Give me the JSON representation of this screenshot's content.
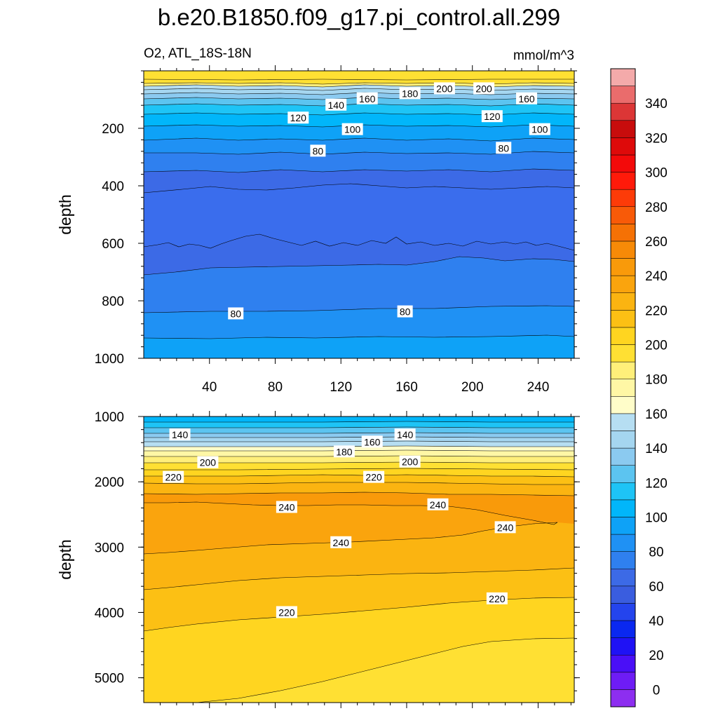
{
  "title": "b.e20.B1850.f09_g17.pi_control.all.299",
  "left_subtitle": "O2, ATL_18S-18N",
  "right_subtitle": "mmol/m^3",
  "colorbar": {
    "colors": [
      "#8d2ef0",
      "#6e1cf5",
      "#4a0ff7",
      "#1f12f5",
      "#0a28f0",
      "#2444ed",
      "#3a5ddf",
      "#3c6ae6",
      "#2f80ef",
      "#1f91f4",
      "#0ea2f7",
      "#01b6fa",
      "#1ec4f6",
      "#5cc4f0",
      "#8bcaf0",
      "#a5d6f0",
      "#b6def2",
      "#fffdc9",
      "#fff7a5",
      "#ffef7a",
      "#ffe033",
      "#ffd520",
      "#fcc014",
      "#fbb411",
      "#faa40d",
      "#f99a0a",
      "#f78a07",
      "#f57105",
      "#f85a08",
      "#fd3b08",
      "#ff1a0a",
      "#f30a0a",
      "#de0a0a",
      "#c80c0c",
      "#dc3636",
      "#ea6c6c",
      "#f4aaaa"
    ],
    "labels": [
      "0",
      "20",
      "40",
      "60",
      "80",
      "100",
      "120",
      "140",
      "160",
      "180",
      "200",
      "220",
      "240",
      "260",
      "280",
      "300",
      "320",
      "340"
    ]
  },
  "chart_data": [
    {
      "type": "contour",
      "panel": "upper",
      "xticks": [
        "40",
        "80",
        "120",
        "160",
        "200",
        "240"
      ],
      "yticks": [
        "200",
        "400",
        "600",
        "800",
        "1000"
      ],
      "ylabel": "depth",
      "xlim": [
        0,
        262
      ],
      "ylim": [
        1000,
        0
      ],
      "contour_labels": [
        {
          "text": "200",
          "x": 183,
          "y": 62
        },
        {
          "text": "200",
          "x": 207,
          "y": 62
        },
        {
          "text": "180",
          "x": 162,
          "y": 79
        },
        {
          "text": "160",
          "x": 136,
          "y": 97
        },
        {
          "text": "160",
          "x": 233,
          "y": 97
        },
        {
          "text": "140",
          "x": 117,
          "y": 119
        },
        {
          "text": "120",
          "x": 94,
          "y": 164
        },
        {
          "text": "120",
          "x": 212,
          "y": 159
        },
        {
          "text": "100",
          "x": 127,
          "y": 204
        },
        {
          "text": "100",
          "x": 241,
          "y": 204
        },
        {
          "text": "80",
          "x": 106,
          "y": 279
        },
        {
          "text": "80",
          "x": 219,
          "y": 269
        },
        {
          "text": "80",
          "x": 56,
          "y": 845
        },
        {
          "text": "80",
          "x": 159,
          "y": 838
        }
      ]
    },
    {
      "type": "contour",
      "panel": "lower",
      "xticks": [
        "40",
        "80",
        "120",
        "160",
        "200",
        "240"
      ],
      "yticks": [
        "1000",
        "2000",
        "3000",
        "4000",
        "5000"
      ],
      "ylabel": "depth",
      "xlim": [
        0,
        262
      ],
      "ylim": [
        5380,
        1000
      ],
      "contour_labels": [
        {
          "text": "140",
          "x": 22,
          "y": 1280
        },
        {
          "text": "140",
          "x": 159,
          "y": 1280
        },
        {
          "text": "160",
          "x": 139,
          "y": 1390
        },
        {
          "text": "180",
          "x": 122,
          "y": 1540
        },
        {
          "text": "200",
          "x": 39,
          "y": 1705
        },
        {
          "text": "200",
          "x": 162,
          "y": 1695
        },
        {
          "text": "220",
          "x": 18,
          "y": 1930
        },
        {
          "text": "220",
          "x": 140,
          "y": 1930
        },
        {
          "text": "240",
          "x": 87,
          "y": 2390
        },
        {
          "text": "240",
          "x": 179,
          "y": 2350
        },
        {
          "text": "240",
          "x": 220,
          "y": 2700
        },
        {
          "text": "240",
          "x": 120,
          "y": 2930
        },
        {
          "text": "220",
          "x": 87,
          "y": 4000
        },
        {
          "text": "220",
          "x": 215,
          "y": 3790
        }
      ]
    }
  ]
}
